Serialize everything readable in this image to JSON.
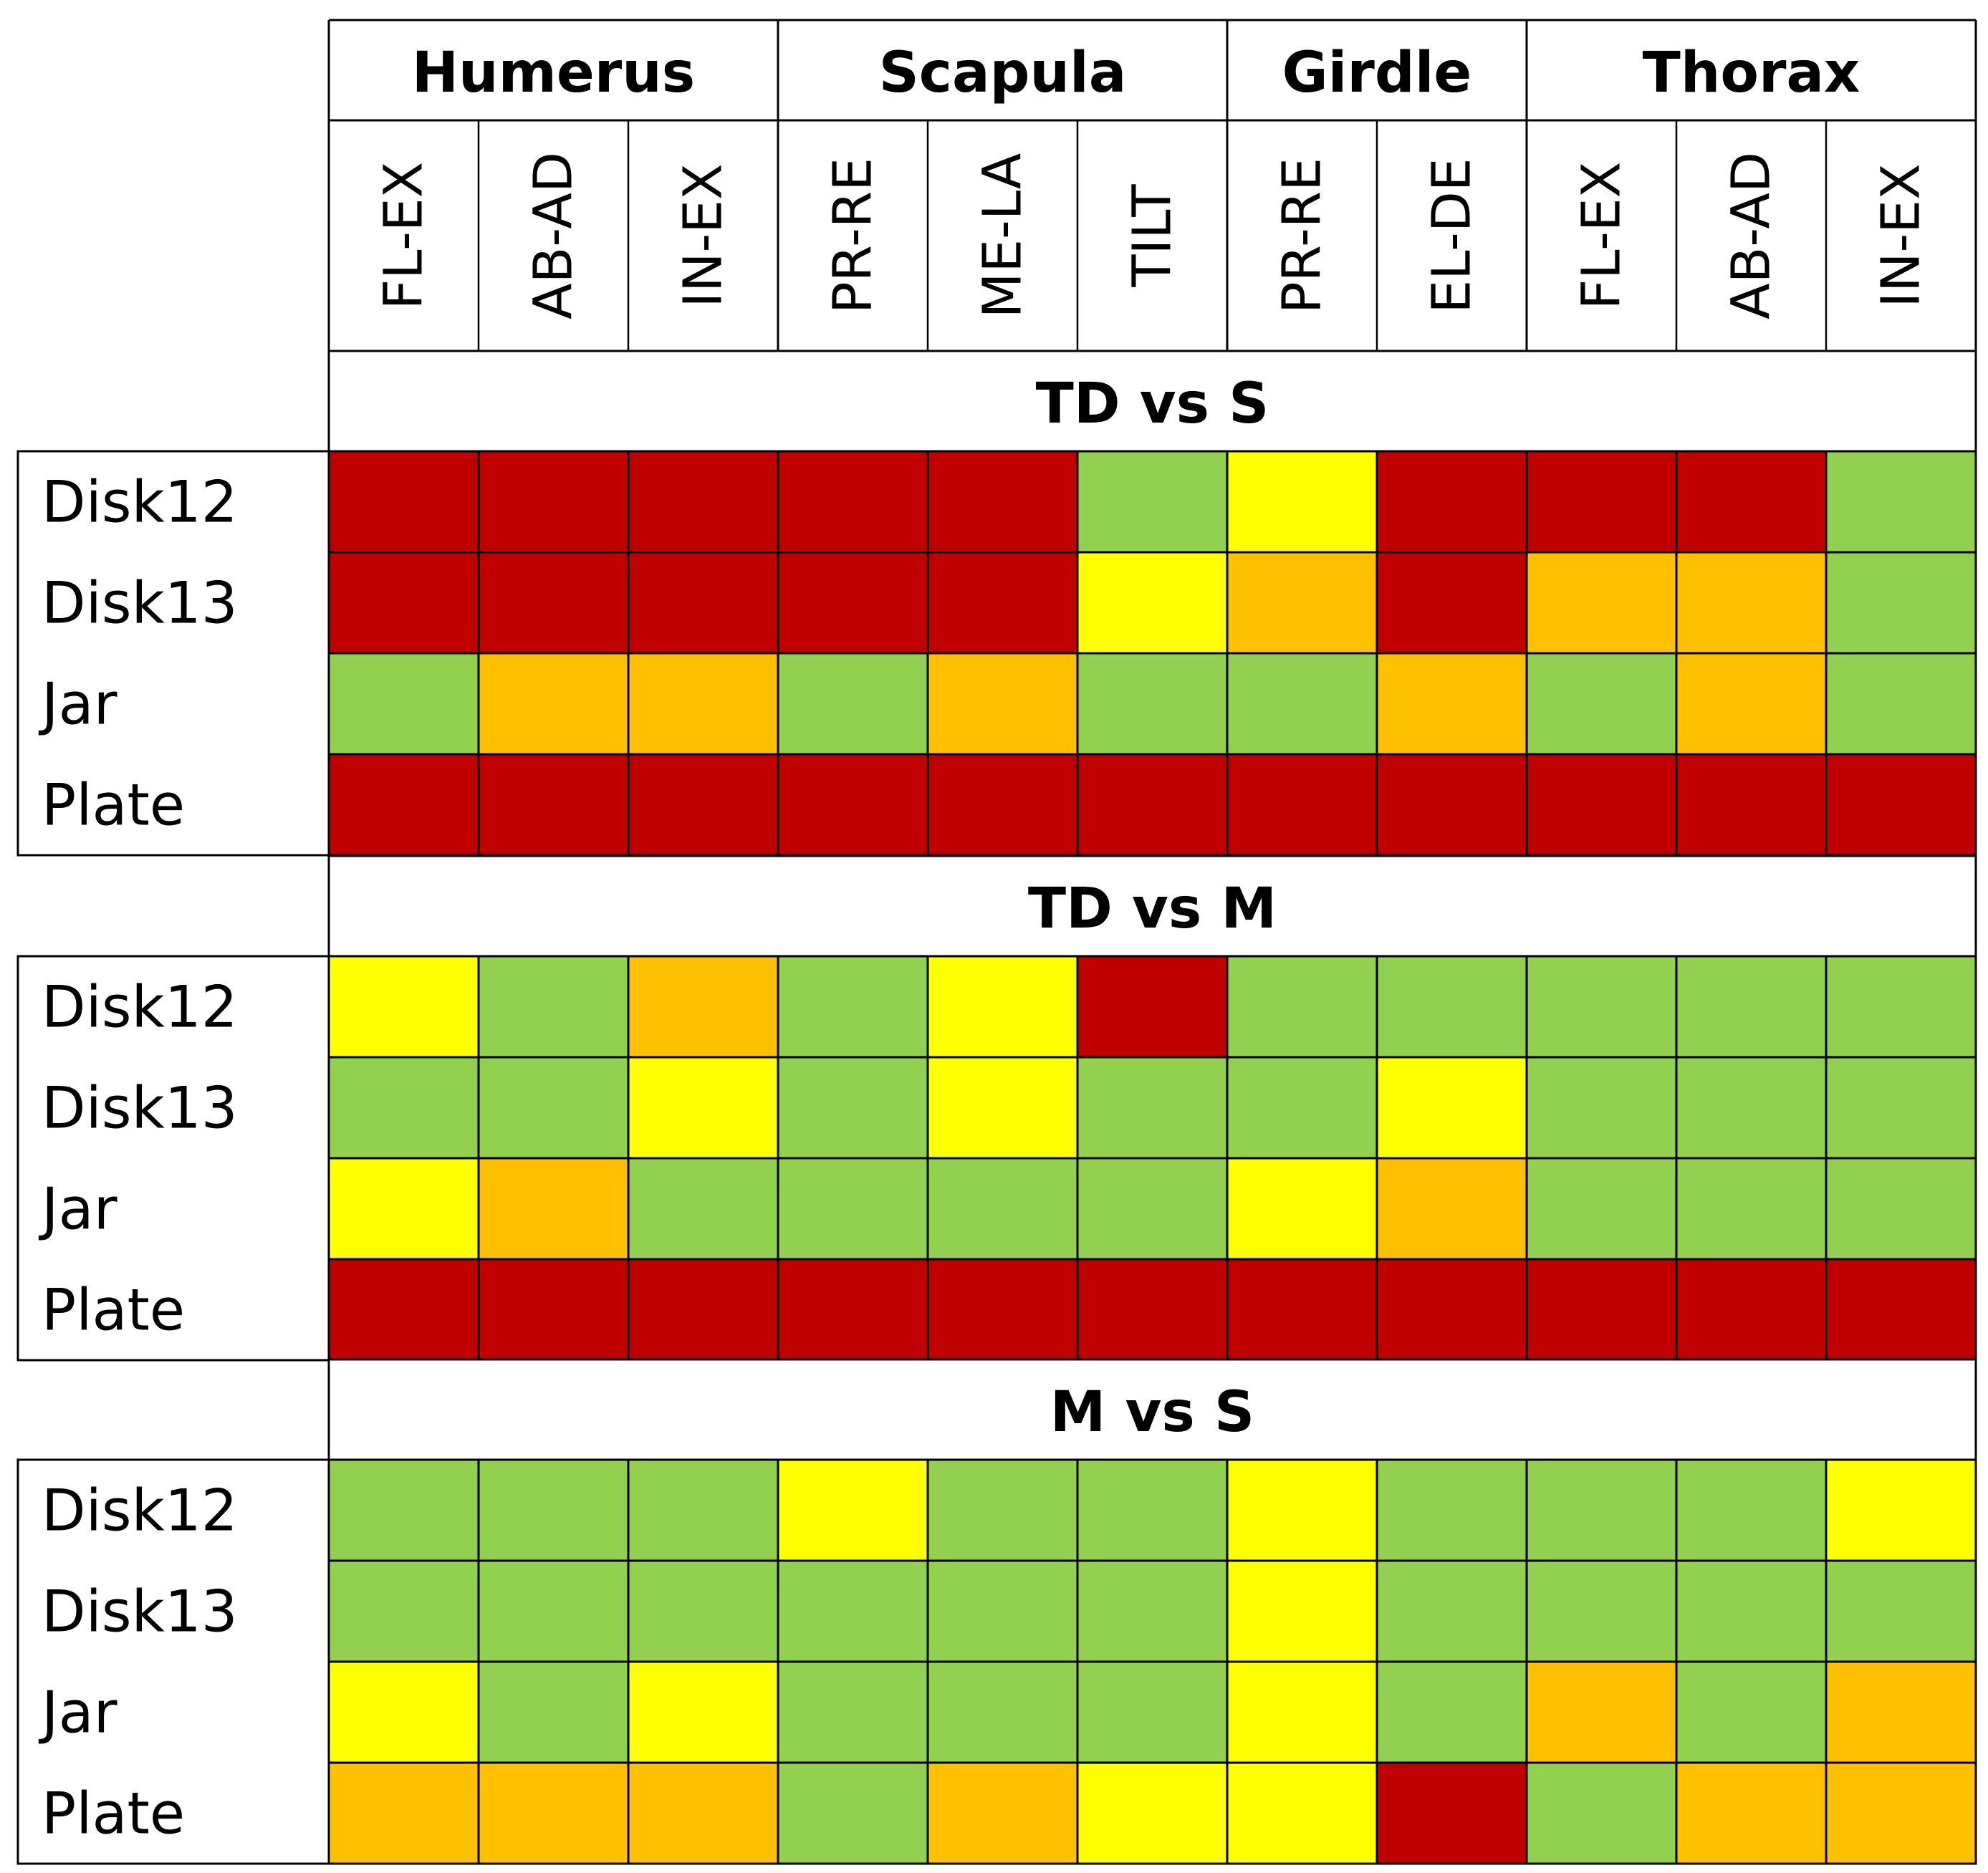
{
  "palette": {
    "G": "#92D050",
    "Y": "#FFFF00",
    "O": "#FFC000",
    "R": "#C00000"
  },
  "chart_data": {
    "type": "heatmap",
    "groups": [
      {
        "name": "Humerus",
        "columns": [
          "FL-EX",
          "AB-AD",
          "IN-EX"
        ]
      },
      {
        "name": "Scapula",
        "columns": [
          "PR-RE",
          "ME-LA",
          "TILT"
        ]
      },
      {
        "name": "Girdle",
        "columns": [
          "PR-RE",
          "EL-DE"
        ]
      },
      {
        "name": "Thorax",
        "columns": [
          "FL-EX",
          "AB-AD",
          "IN-EX"
        ]
      }
    ],
    "row_labels": [
      "Disk12",
      "Disk13",
      "Jar",
      "Plate"
    ],
    "blocks": [
      {
        "title": "TD vs S",
        "rows": [
          [
            "R",
            "R",
            "R",
            "R",
            "R",
            "G",
            "Y",
            "R",
            "R",
            "R",
            "G"
          ],
          [
            "R",
            "R",
            "R",
            "R",
            "R",
            "Y",
            "O",
            "R",
            "O",
            "O",
            "G"
          ],
          [
            "G",
            "O",
            "O",
            "G",
            "O",
            "G",
            "G",
            "O",
            "G",
            "O",
            "G"
          ],
          [
            "R",
            "R",
            "R",
            "R",
            "R",
            "R",
            "R",
            "R",
            "R",
            "R",
            "R"
          ]
        ]
      },
      {
        "title": "TD vs M",
        "rows": [
          [
            "Y",
            "G",
            "O",
            "G",
            "Y",
            "R",
            "G",
            "G",
            "G",
            "G",
            "G"
          ],
          [
            "G",
            "G",
            "Y",
            "G",
            "Y",
            "G",
            "G",
            "Y",
            "G",
            "G",
            "G"
          ],
          [
            "Y",
            "O",
            "G",
            "G",
            "G",
            "G",
            "Y",
            "O",
            "G",
            "G",
            "G"
          ],
          [
            "R",
            "R",
            "R",
            "R",
            "R",
            "R",
            "R",
            "R",
            "R",
            "R",
            "R"
          ]
        ]
      },
      {
        "title": "M vs S",
        "rows": [
          [
            "G",
            "G",
            "G",
            "Y",
            "G",
            "G",
            "Y",
            "G",
            "G",
            "G",
            "Y"
          ],
          [
            "G",
            "G",
            "G",
            "G",
            "G",
            "G",
            "Y",
            "G",
            "G",
            "G",
            "G"
          ],
          [
            "Y",
            "G",
            "Y",
            "G",
            "G",
            "G",
            "Y",
            "G",
            "O",
            "G",
            "O"
          ],
          [
            "O",
            "O",
            "O",
            "G",
            "O",
            "Y",
            "Y",
            "R",
            "G",
            "O",
            "O"
          ]
        ]
      }
    ]
  }
}
